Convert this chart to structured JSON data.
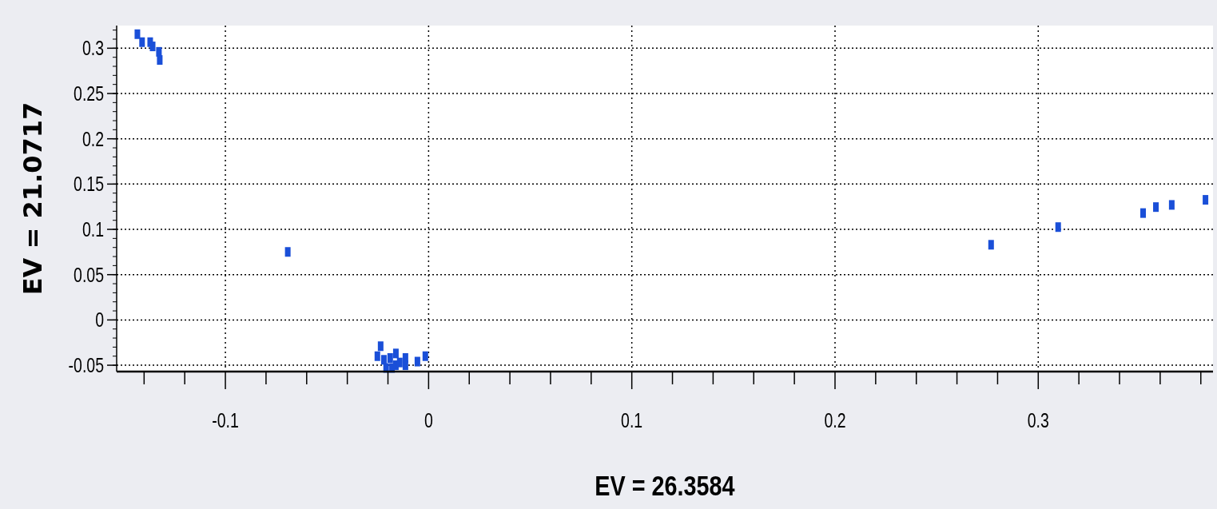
{
  "chart_data": {
    "type": "scatter",
    "xlabel": "EV = 26.3584",
    "ylabel": "EV = 21.0717",
    "xlim": [
      -0.1535,
      0.386
    ],
    "ylim": [
      -0.057,
      0.325
    ],
    "xticks": [
      {
        "value": -0.14,
        "label": null
      },
      {
        "value": -0.12,
        "label": null
      },
      {
        "value": -0.1,
        "label": "-0.1"
      },
      {
        "value": -0.08,
        "label": null
      },
      {
        "value": -0.06,
        "label": null
      },
      {
        "value": -0.04,
        "label": null
      },
      {
        "value": -0.02,
        "label": null
      },
      0,
      {
        "value": 0.02,
        "label": null
      },
      {
        "value": 0.04,
        "label": null
      },
      {
        "value": 0.06,
        "label": null
      },
      {
        "value": 0.08,
        "label": null
      },
      0.1,
      {
        "value": 0.12,
        "label": null
      },
      {
        "value": 0.14,
        "label": null
      },
      {
        "value": 0.16,
        "label": null
      },
      {
        "value": 0.18,
        "label": null
      },
      0.2,
      {
        "value": 0.22,
        "label": null
      },
      {
        "value": 0.24,
        "label": null
      },
      {
        "value": 0.26,
        "label": null
      },
      {
        "value": 0.28,
        "label": null
      },
      0.3,
      {
        "value": 0.32,
        "label": null
      },
      {
        "value": 0.34,
        "label": null
      },
      {
        "value": 0.36,
        "label": null
      },
      {
        "value": 0.38,
        "label": null
      }
    ],
    "yticks": [
      -0.05,
      0,
      0.05,
      0.1,
      0.15,
      0.2,
      0.25,
      0.3
    ],
    "grid": true,
    "marker": "square",
    "series": [
      {
        "color": "#1a4fd8",
        "x": [
          -0.1433,
          -0.141,
          -0.137,
          -0.1358,
          -0.1327,
          -0.1323,
          -0.0693,
          -0.0236,
          -0.0252,
          -0.022,
          -0.0209,
          -0.0189,
          -0.0161,
          -0.0161,
          -0.0142,
          -0.0114,
          -0.0114,
          -0.0055,
          -0.0016,
          -0.018,
          0.2768,
          0.3098,
          0.3516,
          0.3579,
          0.3657,
          0.3823
        ],
        "values": [
          0.3155,
          0.3067,
          0.3067,
          0.302,
          0.296,
          0.287,
          0.0751,
          -0.029,
          -0.04,
          -0.044,
          -0.053,
          -0.042,
          -0.037,
          -0.05,
          -0.047,
          -0.042,
          -0.05,
          -0.046,
          -0.04,
          -0.053,
          0.083,
          0.1025,
          0.118,
          0.1246,
          0.127,
          0.1326
        ]
      }
    ]
  }
}
